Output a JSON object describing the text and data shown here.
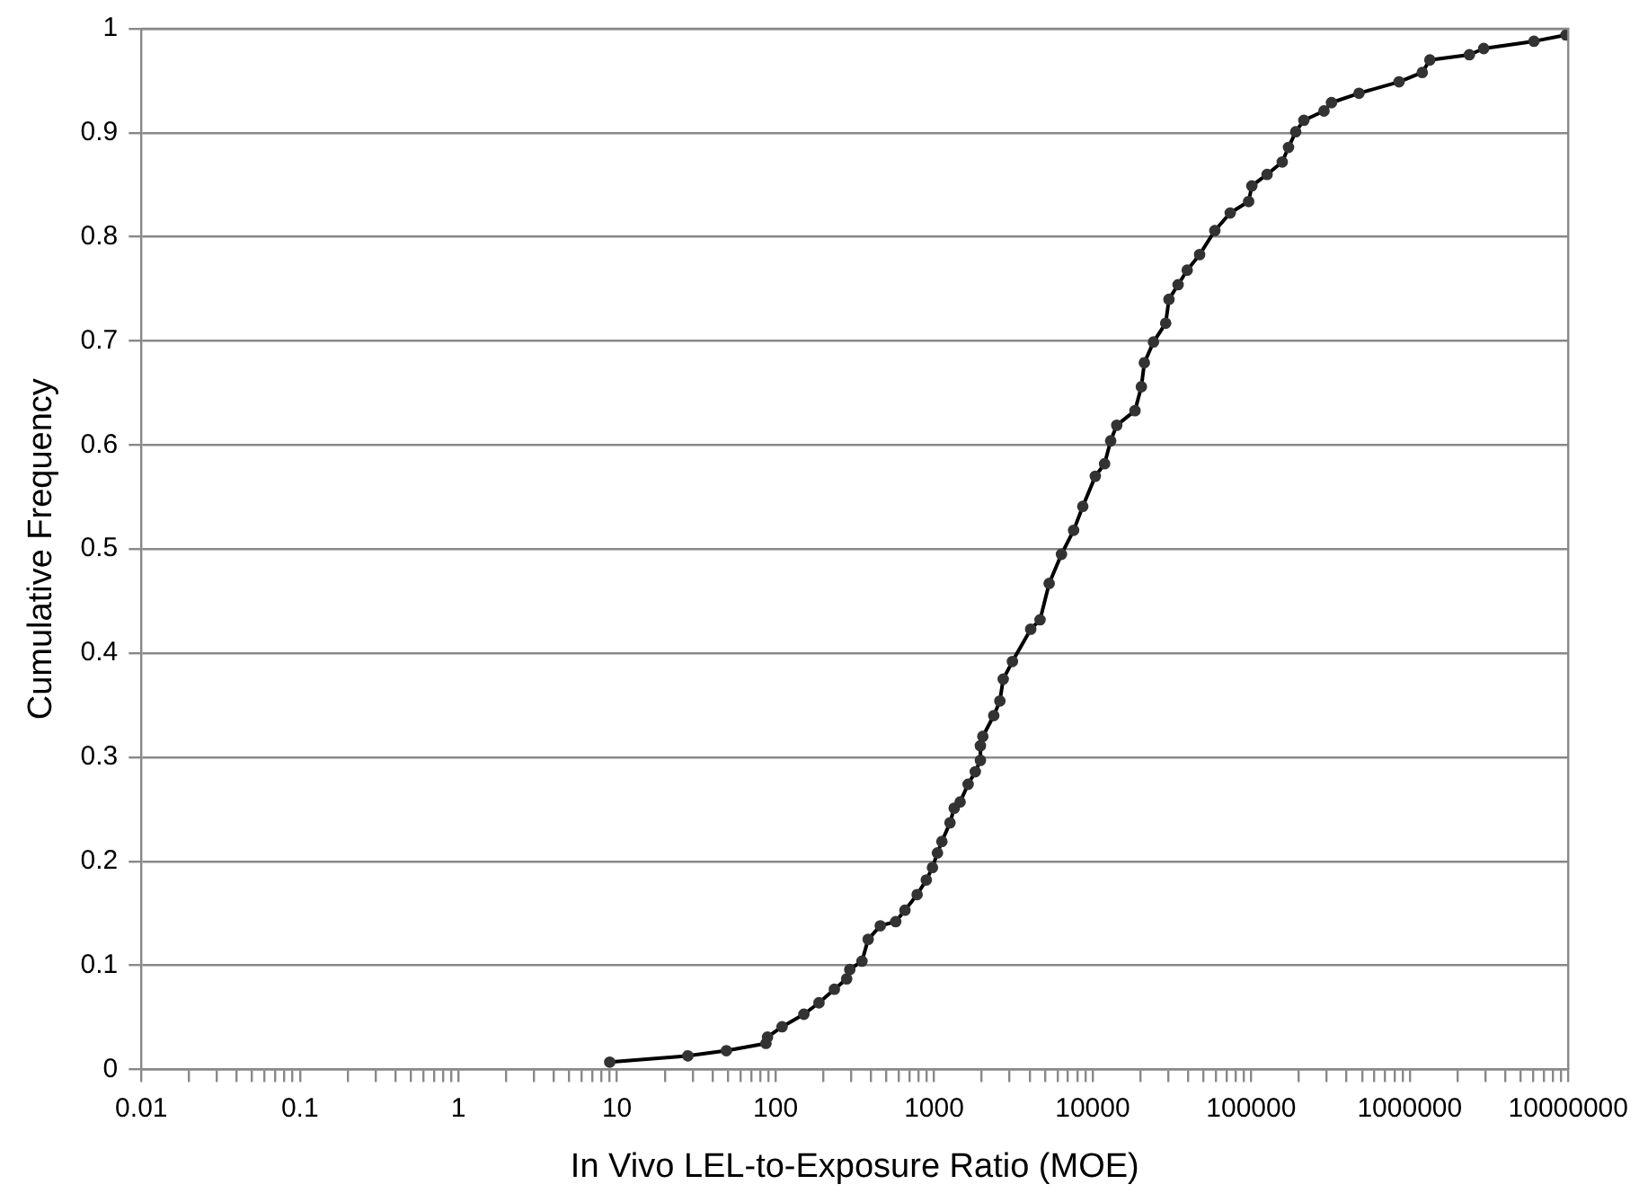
{
  "chart_data": {
    "type": "line",
    "xlabel": "In Vivo LEL-to-Exposure Ratio (MOE)",
    "ylabel": "Cumulative Frequency",
    "log": "x",
    "grid": "y",
    "legend": false,
    "marker": "circle",
    "line_style": "solid",
    "xlim": [
      0.01,
      10000000
    ],
    "ylim": [
      0,
      1
    ],
    "xticks": [
      0.01,
      {
        "value": 0.02,
        "label": null
      },
      {
        "value": 0.03,
        "label": null
      },
      {
        "value": 0.04,
        "label": null
      },
      {
        "value": 0.05,
        "label": null
      },
      {
        "value": 0.06,
        "label": null
      },
      {
        "value": 0.07,
        "label": null
      },
      {
        "value": 0.08,
        "label": null
      },
      {
        "value": 0.09,
        "label": null
      },
      0.1,
      {
        "value": 0.2,
        "label": null
      },
      {
        "value": 0.3,
        "label": null
      },
      {
        "value": 0.4,
        "label": null
      },
      {
        "value": 0.5,
        "label": null
      },
      {
        "value": 0.6,
        "label": null
      },
      {
        "value": 0.7,
        "label": null
      },
      {
        "value": 0.8,
        "label": null
      },
      {
        "value": 0.9,
        "label": null
      },
      1,
      {
        "value": 2,
        "label": null
      },
      {
        "value": 3,
        "label": null
      },
      {
        "value": 4,
        "label": null
      },
      {
        "value": 5,
        "label": null
      },
      {
        "value": 6,
        "label": null
      },
      {
        "value": 7,
        "label": null
      },
      {
        "value": 8,
        "label": null
      },
      {
        "value": 9,
        "label": null
      },
      10,
      {
        "value": 20,
        "label": null
      },
      {
        "value": 30,
        "label": null
      },
      {
        "value": 40,
        "label": null
      },
      {
        "value": 50,
        "label": null
      },
      {
        "value": 60,
        "label": null
      },
      {
        "value": 70,
        "label": null
      },
      {
        "value": 80,
        "label": null
      },
      {
        "value": 90,
        "label": null
      },
      100,
      {
        "value": 200,
        "label": null
      },
      {
        "value": 300,
        "label": null
      },
      {
        "value": 400,
        "label": null
      },
      {
        "value": 500,
        "label": null
      },
      {
        "value": 600,
        "label": null
      },
      {
        "value": 700,
        "label": null
      },
      {
        "value": 800,
        "label": null
      },
      {
        "value": 900,
        "label": null
      },
      1000,
      {
        "value": 2000,
        "label": null
      },
      {
        "value": 3000,
        "label": null
      },
      {
        "value": 4000,
        "label": null
      },
      {
        "value": 5000,
        "label": null
      },
      {
        "value": 6000,
        "label": null
      },
      {
        "value": 7000,
        "label": null
      },
      {
        "value": 8000,
        "label": null
      },
      {
        "value": 9000,
        "label": null
      },
      10000,
      {
        "value": 20000,
        "label": null
      },
      {
        "value": 30000,
        "label": null
      },
      {
        "value": 40000,
        "label": null
      },
      {
        "value": 50000,
        "label": null
      },
      {
        "value": 60000,
        "label": null
      },
      {
        "value": 70000,
        "label": null
      },
      {
        "value": 80000,
        "label": null
      },
      {
        "value": 90000,
        "label": null
      },
      100000,
      {
        "value": 200000,
        "label": null
      },
      {
        "value": 300000,
        "label": null
      },
      {
        "value": 400000,
        "label": null
      },
      {
        "value": 500000,
        "label": null
      },
      {
        "value": 600000,
        "label": null
      },
      {
        "value": 700000,
        "label": null
      },
      {
        "value": 800000,
        "label": null
      },
      {
        "value": 900000,
        "label": null
      },
      1000000,
      {
        "value": 2000000,
        "label": null
      },
      {
        "value": 3000000,
        "label": null
      },
      {
        "value": 4000000,
        "label": null
      },
      {
        "value": 5000000,
        "label": null
      },
      {
        "value": 6000000,
        "label": null
      },
      {
        "value": 7000000,
        "label": null
      },
      {
        "value": 8000000,
        "label": null
      },
      {
        "value": 9000000,
        "label": null
      },
      10000000
    ],
    "yticks": [
      0,
      0.1,
      0.2,
      0.3,
      0.4,
      0.5,
      0.6,
      0.7,
      0.8,
      0.9,
      1
    ],
    "series": [
      {
        "color": "#333333",
        "x": [
          9,
          28,
          49,
          87,
          89,
          110,
          151,
          188,
          235,
          281,
          294,
          351,
          384,
          458,
          573,
          655,
          782,
          893,
          977,
          1050,
          1120,
          1260,
          1340,
          1460,
          1640,
          1820,
          1960,
          1960,
          2030,
          2380,
          2600,
          2730,
          3120,
          4070,
          4660,
          5320,
          6360,
          7590,
          8670,
          10400,
          11900,
          13000,
          14200,
          18500,
          20300,
          21200,
          24200,
          28900,
          30300,
          34600,
          39500,
          47300,
          59000,
          73800,
          96400,
          101000,
          126000,
          157000,
          172000,
          191000,
          215000,
          288000,
          321000,
          479000,
          857000,
          1200000,
          1340000,
          2380000,
          2930000,
          6080000,
          9680000
        ],
        "values": [
          0.007,
          0.013,
          0.018,
          0.025,
          0.031,
          0.041,
          0.053,
          0.064,
          0.077,
          0.087,
          0.096,
          0.104,
          0.125,
          0.138,
          0.142,
          0.153,
          0.168,
          0.182,
          0.194,
          0.208,
          0.219,
          0.237,
          0.251,
          0.257,
          0.274,
          0.286,
          0.297,
          0.311,
          0.32,
          0.34,
          0.354,
          0.375,
          0.392,
          0.423,
          0.432,
          0.467,
          0.495,
          0.518,
          0.541,
          0.57,
          0.582,
          0.604,
          0.619,
          0.633,
          0.656,
          0.679,
          0.699,
          0.717,
          0.74,
          0.754,
          0.768,
          0.783,
          0.806,
          0.823,
          0.834,
          0.849,
          0.86,
          0.872,
          0.886,
          0.901,
          0.912,
          0.921,
          0.929,
          0.938,
          0.949,
          0.958,
          0.97,
          0.975,
          0.981,
          0.988,
          0.994
        ]
      }
    ]
  }
}
